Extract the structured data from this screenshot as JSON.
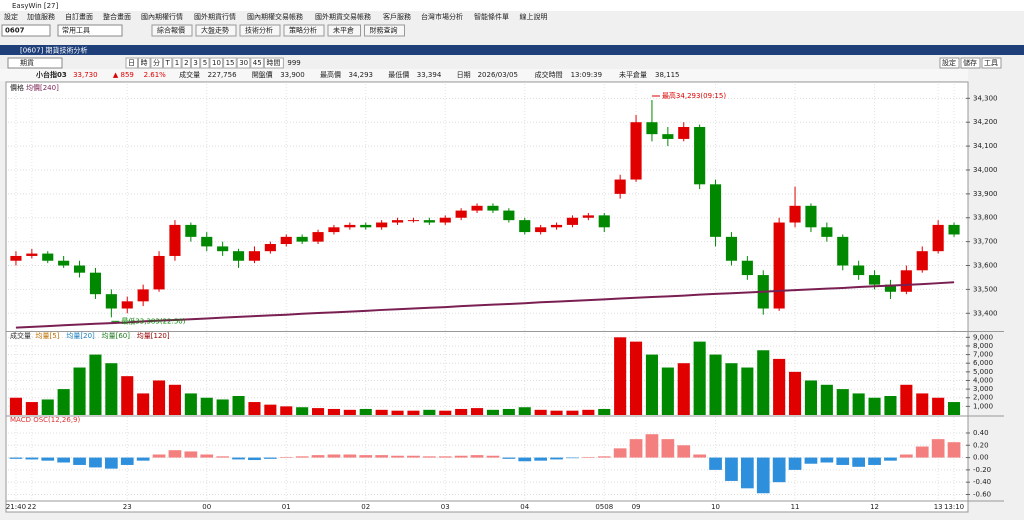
{
  "app": {
    "title": "EasyWin [27]",
    "menu": [
      "設定",
      "加值服務",
      "自訂畫面",
      "整合畫面",
      "國內期權行情",
      "國外期貨行情",
      "國內期權交易帳務",
      "國外期貨交易帳務",
      "客戶服務",
      "台灣市場分析",
      "智能條件單",
      "線上說明"
    ],
    "toolbar": {
      "code": "0607",
      "tools": "常用工具",
      "buttons": [
        "綜合報價",
        "大盤走勢",
        "技術分析",
        "策略分析",
        "未平倉",
        "財務查詢"
      ]
    },
    "window": {
      "title": "[0607] 期貨技術分析",
      "product": "期貨",
      "periods": [
        "日",
        "時",
        "分",
        "T",
        "1",
        "2",
        "3",
        "5",
        "10",
        "15",
        "30",
        "45",
        "時間"
      ],
      "count": "999",
      "right_buttons": [
        "設定",
        "儲存",
        "工具"
      ]
    },
    "quote": [
      [
        "小台指03",
        "33,730"
      ],
      [
        "▲ 859",
        "2.61%"
      ],
      [
        "成交量",
        "227,756"
      ],
      [
        "開盤價",
        "33,900"
      ],
      [
        "最高價",
        "34,293"
      ],
      [
        "最低價",
        "33,394"
      ],
      [
        "日期",
        "2026/03/05"
      ],
      [
        "成交時間",
        "13:09:39"
      ],
      [
        "未平倉量",
        "38,115"
      ]
    ]
  },
  "chart_data": {
    "type": "candlestick",
    "price_label": "價格",
    "ma_name": "均價[240]",
    "up_color": "#e00000",
    "down_color": "#008800",
    "ma_color": "#7a1f52",
    "categories": [
      "21:40",
      "22",
      null,
      null,
      null,
      null,
      null,
      "23",
      null,
      null,
      null,
      null,
      "00",
      null,
      null,
      null,
      null,
      "01",
      null,
      null,
      null,
      null,
      "02",
      null,
      null,
      null,
      null,
      "03",
      null,
      null,
      null,
      null,
      "04",
      null,
      null,
      null,
      null,
      "0508",
      null,
      "09",
      null,
      null,
      null,
      null,
      "10",
      null,
      null,
      null,
      null,
      "11",
      null,
      null,
      null,
      null,
      "12",
      null,
      null,
      null,
      "13",
      "13:10"
    ],
    "candles": [
      [
        33620,
        33660,
        33600,
        33640
      ],
      [
        33640,
        33670,
        33630,
        33650
      ],
      [
        33650,
        33660,
        33610,
        33620
      ],
      [
        33620,
        33640,
        33590,
        33600
      ],
      [
        33600,
        33620,
        33550,
        33570
      ],
      [
        33570,
        33590,
        33460,
        33480
      ],
      [
        33480,
        33500,
        33383,
        33420
      ],
      [
        33420,
        33470,
        33400,
        33450
      ],
      [
        33450,
        33520,
        33430,
        33500
      ],
      [
        33500,
        33660,
        33490,
        33640
      ],
      [
        33640,
        33790,
        33620,
        33770
      ],
      [
        33770,
        33780,
        33700,
        33720
      ],
      [
        33720,
        33740,
        33660,
        33680
      ],
      [
        33680,
        33700,
        33640,
        33660
      ],
      [
        33660,
        33670,
        33590,
        33620
      ],
      [
        33620,
        33680,
        33610,
        33660
      ],
      [
        33660,
        33700,
        33650,
        33690
      ],
      [
        33690,
        33730,
        33680,
        33720
      ],
      [
        33720,
        33730,
        33690,
        33700
      ],
      [
        33700,
        33750,
        33690,
        33740
      ],
      [
        33740,
        33770,
        33730,
        33760
      ],
      [
        33760,
        33780,
        33750,
        33770
      ],
      [
        33770,
        33780,
        33750,
        33760
      ],
      [
        33760,
        33790,
        33750,
        33780
      ],
      [
        33780,
        33800,
        33770,
        33790
      ],
      [
        33790,
        33800,
        33780,
        33790
      ],
      [
        33790,
        33800,
        33770,
        33780
      ],
      [
        33780,
        33810,
        33770,
        33800
      ],
      [
        33800,
        33840,
        33790,
        33830
      ],
      [
        33830,
        33860,
        33820,
        33850
      ],
      [
        33850,
        33860,
        33820,
        33830
      ],
      [
        33830,
        33840,
        33780,
        33790
      ],
      [
        33790,
        33800,
        33730,
        33740
      ],
      [
        33740,
        33770,
        33730,
        33760
      ],
      [
        33760,
        33780,
        33750,
        33770
      ],
      [
        33770,
        33810,
        33760,
        33800
      ],
      [
        33800,
        33820,
        33790,
        33810
      ],
      [
        33810,
        33820,
        33740,
        33760
      ],
      [
        33900,
        33980,
        33880,
        33960
      ],
      [
        33960,
        34230,
        33950,
        34200
      ],
      [
        34200,
        34293,
        34120,
        34150
      ],
      [
        34150,
        34180,
        34100,
        34130
      ],
      [
        34130,
        34200,
        34120,
        34180
      ],
      [
        34180,
        34190,
        33920,
        33940
      ],
      [
        33940,
        33960,
        33680,
        33720
      ],
      [
        33720,
        33740,
        33600,
        33620
      ],
      [
        33620,
        33640,
        33540,
        33560
      ],
      [
        33560,
        33580,
        33394,
        33420
      ],
      [
        33420,
        33800,
        33410,
        33780
      ],
      [
        33780,
        33930,
        33760,
        33850
      ],
      [
        33850,
        33860,
        33740,
        33760
      ],
      [
        33760,
        33780,
        33700,
        33720
      ],
      [
        33720,
        33730,
        33580,
        33600
      ],
      [
        33600,
        33620,
        33540,
        33560
      ],
      [
        33560,
        33580,
        33500,
        33520
      ],
      [
        33520,
        33540,
        33460,
        33490
      ],
      [
        33490,
        33600,
        33480,
        33580
      ],
      [
        33580,
        33680,
        33570,
        33660
      ],
      [
        33660,
        33790,
        33650,
        33770
      ],
      [
        33770,
        33780,
        33720,
        33730
      ]
    ],
    "ma": [
      33340,
      33343,
      33346,
      33350,
      33353,
      33356,
      33359,
      33362,
      33366,
      33369,
      33372,
      33375,
      33378,
      33382,
      33385,
      33388,
      33391,
      33394,
      33398,
      33401,
      33404,
      33407,
      33410,
      33414,
      33417,
      33420,
      33423,
      33426,
      33430,
      33433,
      33436,
      33439,
      33442,
      33446,
      33449,
      33452,
      33455,
      33458,
      33462,
      33465,
      33468,
      33471,
      33474,
      33478,
      33481,
      33484,
      33487,
      33490,
      33494,
      33497,
      33500,
      33503,
      33506,
      33510,
      33513,
      33516,
      33519,
      33522,
      33526,
      33530
    ],
    "ylim": [
      33330,
      34360
    ],
    "yticks": [
      {
        "value": 33400,
        "label": "33,400"
      },
      {
        "value": 33500,
        "label": "33,500"
      },
      {
        "value": 33600,
        "label": "33,600"
      },
      {
        "value": 33700,
        "label": "33,700"
      },
      {
        "value": 33800,
        "label": "33,800"
      },
      {
        "value": 33900,
        "label": "33,900"
      },
      {
        "value": 34000,
        "label": "34,000"
      },
      {
        "value": 34100,
        "label": "34,100"
      },
      {
        "value": 34200,
        "label": "34,200"
      },
      {
        "value": 34300,
        "label": "34,300"
      }
    ],
    "annotations": [
      {
        "text": "最高34,293(09:15)",
        "candle": 40
      },
      {
        "text": "最低33,383(22:50)",
        "candle": 6
      }
    ],
    "volume": {
      "legend": [
        "成交量",
        "均量[5]",
        "均量[20]",
        "均量[60]",
        "均量[120]"
      ],
      "values": [
        2000,
        1500,
        1800,
        3000,
        5500,
        7000,
        6000,
        4500,
        2500,
        4000,
        3500,
        2500,
        2000,
        1800,
        2200,
        1500,
        1200,
        1000,
        900,
        800,
        700,
        600,
        700,
        600,
        500,
        500,
        600,
        500,
        700,
        800,
        600,
        700,
        900,
        600,
        500,
        500,
        600,
        700,
        9000,
        8500,
        7000,
        5500,
        6000,
        8500,
        7000,
        6000,
        5500,
        7500,
        6500,
        5000,
        4000,
        3500,
        3000,
        2500,
        2000,
        2200,
        3500,
        2500,
        2000,
        1500
      ],
      "ylim": [
        0,
        9500
      ],
      "yticks": [
        {
          "value": 1000,
          "label": "1,000"
        },
        {
          "value": 2000,
          "label": "2,000"
        },
        {
          "value": 3000,
          "label": "3,000"
        },
        {
          "value": 4000,
          "label": "4,000"
        },
        {
          "value": 5000,
          "label": "5,000"
        },
        {
          "value": 6000,
          "label": "6,000"
        },
        {
          "value": 7000,
          "label": "7,000"
        },
        {
          "value": 8000,
          "label": "8,000"
        },
        {
          "value": 9000,
          "label": "9,000"
        }
      ]
    },
    "macd": {
      "label": "MACD OSC(12,26,9)",
      "pos_color": "#f47f7f",
      "neg_color": "#2e8fdc",
      "values": [
        -0.02,
        -0.03,
        -0.05,
        -0.08,
        -0.12,
        -0.16,
        -0.18,
        -0.12,
        -0.05,
        0.05,
        0.12,
        0.1,
        0.05,
        0.02,
        -0.03,
        -0.04,
        -0.02,
        0.01,
        0.02,
        0.04,
        0.05,
        0.05,
        0.04,
        0.04,
        0.03,
        0.03,
        0.02,
        0.02,
        0.03,
        0.04,
        0.03,
        -0.02,
        -0.06,
        -0.05,
        -0.03,
        -0.01,
        0.01,
        0.02,
        0.15,
        0.3,
        0.38,
        0.3,
        0.2,
        0.05,
        -0.2,
        -0.38,
        -0.5,
        -0.58,
        -0.4,
        -0.2,
        -0.1,
        -0.08,
        -0.12,
        -0.15,
        -0.12,
        -0.05,
        0.05,
        0.18,
        0.3,
        0.25
      ],
      "ylim": [
        -0.69,
        0.66
      ],
      "yticks": [
        {
          "value": -0.6,
          "label": "-0.60"
        },
        {
          "value": -0.4,
          "label": "-0.40"
        },
        {
          "value": -0.2,
          "label": "-0.20"
        },
        {
          "value": 0,
          "label": "0.00"
        },
        {
          "value": 0.2,
          "label": "0.20"
        },
        {
          "value": 0.4,
          "label": "0.40"
        }
      ]
    }
  }
}
